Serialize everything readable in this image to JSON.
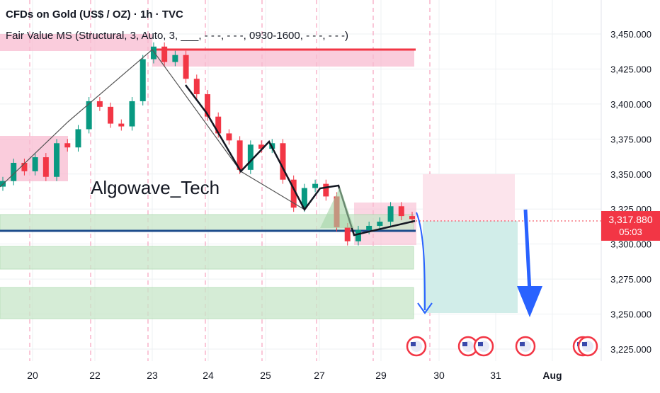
{
  "header": {
    "title": "CFDs on Gold (US$ / OZ) · 1h · TVC",
    "indicator": "Fair Value MS (Structural, 3, Auto, 3, ___, - - -, - - -, 0930-1600, - - -, - - -)"
  },
  "watermark": "Algowave_Tech",
  "price_tag": {
    "price": "3,317.880",
    "countdown": "05:03"
  },
  "colors": {
    "up": "#089981",
    "down": "#f23645",
    "supply": "#f5a3b5",
    "demand": "#a5d6a7",
    "arrow": "#2962ff",
    "level": "#1e4d8c"
  },
  "chart_data": {
    "type": "line",
    "x_ticks": [
      "20",
      "22",
      "23",
      "24",
      "25",
      "27",
      "29",
      "30",
      "31",
      "Aug"
    ],
    "y_ticks": [
      "3,450.000",
      "3,425.000",
      "3,400.000",
      "3,375.000",
      "3,350.000",
      "3,325.000",
      "3,300.000",
      "3,275.000",
      "3,250.000",
      "3,225.000"
    ],
    "ylim": [
      3215,
      3465
    ],
    "last_price": 3317.88,
    "series": [
      {
        "values": [
          3345,
          3358,
          3352,
          3362,
          3348,
          3372,
          3369,
          3382,
          3402,
          3398,
          3386,
          3384,
          3402,
          3432,
          3441,
          3430,
          3435,
          3418,
          3407,
          3391,
          3379,
          3374,
          3353,
          3371,
          3368,
          3372,
          3346,
          3326,
          3340,
          3343,
          3334,
          3312,
          3302,
          3310,
          3313,
          3316,
          3327,
          3320,
          3317.88
        ]
      }
    ],
    "annotations": {
      "resistance_level": 3438,
      "support_level": 3310,
      "projection_target": 3252
    }
  }
}
